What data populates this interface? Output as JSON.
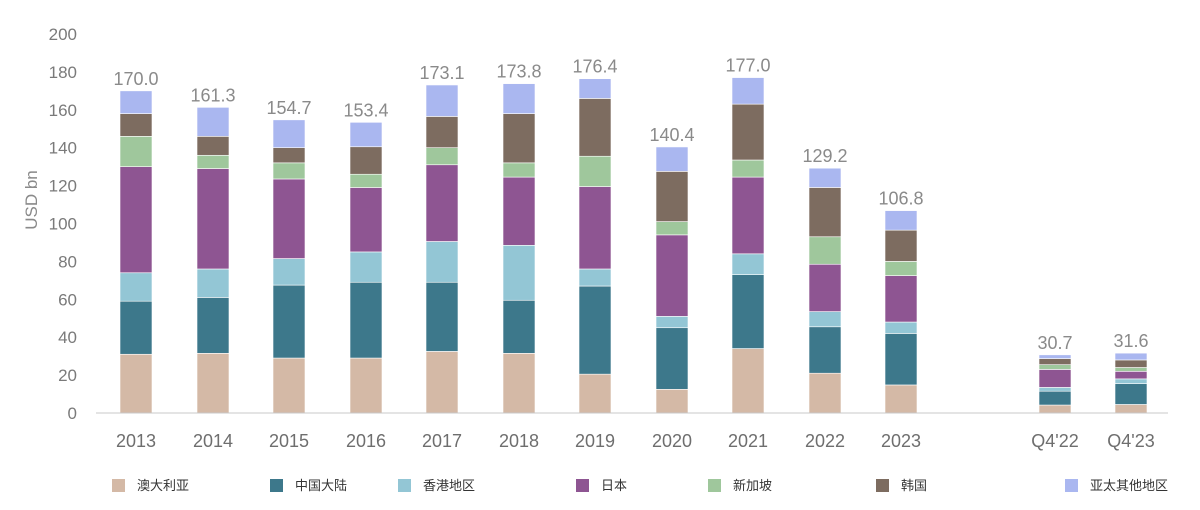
{
  "chart_data": {
    "type": "bar",
    "stacked": true,
    "ylabel": "USD bn",
    "ylim": [
      0,
      200
    ],
    "yticks": [
      0,
      20,
      40,
      60,
      80,
      100,
      120,
      140,
      160,
      180,
      200
    ],
    "grid": false,
    "legend_position": "bottom",
    "categories": [
      "2013",
      "2014",
      "2015",
      "2016",
      "2017",
      "2018",
      "2019",
      "2020",
      "2021",
      "2022",
      "2023",
      "Q4'22",
      "Q4'23"
    ],
    "totals": [
      "170.0",
      "161.3",
      "154.7",
      "153.4",
      "173.1",
      "173.8",
      "176.4",
      "140.4",
      "177.0",
      "129.2",
      "106.8",
      "30.7",
      "31.6"
    ],
    "series": [
      {
        "name": "澳大利亚",
        "color": "#d4b9a6",
        "values": [
          31,
          31.5,
          29,
          29,
          32.5,
          31.5,
          20.5,
          12.5,
          34,
          21,
          14.8,
          4.2,
          4.5
        ]
      },
      {
        "name": "中国大陆",
        "color": "#3d788b",
        "values": [
          28,
          29.5,
          38.5,
          40,
          36.5,
          28,
          46.5,
          32.5,
          39,
          24.5,
          27.2,
          7.3,
          11
        ]
      },
      {
        "name": "香港地区",
        "color": "#93c6d5",
        "values": [
          15,
          15,
          14,
          16,
          21.5,
          29,
          9,
          6,
          11,
          8,
          6,
          2,
          2.5
        ]
      },
      {
        "name": "日本",
        "color": "#8e5592",
        "values": [
          56,
          53,
          42,
          34,
          40.5,
          36,
          43.5,
          43,
          40.5,
          25,
          24.5,
          9.5,
          4
        ]
      },
      {
        "name": "新加坡",
        "color": "#9fc79c",
        "values": [
          16,
          7,
          8.5,
          7,
          9,
          7.5,
          16,
          7,
          9,
          14.5,
          7.5,
          2.5,
          2
        ]
      },
      {
        "name": "韩国",
        "color": "#7d6c60",
        "values": [
          12,
          10,
          8,
          14.5,
          16.5,
          26,
          30.5,
          26.5,
          29.5,
          26,
          16.5,
          3.2,
          4
        ]
      },
      {
        "name": "亚太其他地区",
        "color": "#aab7f0",
        "values": [
          12,
          15.3,
          14.7,
          12.9,
          16.6,
          15.8,
          10.4,
          12.9,
          14,
          10.2,
          10.3,
          2,
          3.6
        ]
      }
    ]
  }
}
